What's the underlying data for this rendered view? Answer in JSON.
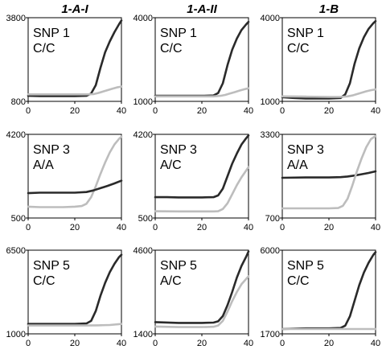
{
  "column_titles": [
    "1-A-I",
    "1-A-II",
    "1-B"
  ],
  "colors": {
    "dark_series": "#2a2a2a",
    "light_series": "#bdbdbd",
    "frame": "#000000"
  },
  "chart_data": [
    {
      "type": "line",
      "label_top": "SNP 1",
      "label_bottom": "C/C",
      "xlim": [
        0,
        40
      ],
      "ylim": [
        800,
        3800
      ],
      "xticks": [
        0,
        20,
        40
      ],
      "yticks": [
        800,
        3800
      ],
      "grid": false,
      "series": [
        {
          "color": "#2a2a2a",
          "x": [
            0,
            5,
            10,
            15,
            20,
            25,
            27,
            29,
            31,
            33,
            35,
            37,
            39,
            40
          ],
          "y": [
            1000,
            990,
            990,
            990,
            990,
            1000,
            1080,
            1380,
            2000,
            2560,
            2950,
            3280,
            3570,
            3700
          ]
        },
        {
          "color": "#bdbdbd",
          "x": [
            0,
            10,
            20,
            25,
            28,
            30,
            32,
            34,
            36,
            38,
            40
          ],
          "y": [
            1050,
            1050,
            1050,
            1050,
            1060,
            1100,
            1150,
            1200,
            1250,
            1300,
            1330
          ]
        }
      ]
    },
    {
      "type": "line",
      "label_top": "SNP 1",
      "label_bottom": "C/C",
      "xlim": [
        0,
        40
      ],
      "ylim": [
        1000,
        4000
      ],
      "xticks": [
        0,
        20,
        40
      ],
      "yticks": [
        1000,
        4000
      ],
      "grid": false,
      "series": [
        {
          "color": "#2a2a2a",
          "x": [
            0,
            5,
            10,
            15,
            20,
            25,
            27,
            29,
            31,
            33,
            35,
            37,
            39,
            40
          ],
          "y": [
            1200,
            1200,
            1200,
            1200,
            1200,
            1210,
            1300,
            1650,
            2300,
            2850,
            3250,
            3560,
            3760,
            3850
          ]
        },
        {
          "color": "#bdbdbd",
          "x": [
            0,
            10,
            20,
            25,
            28,
            30,
            32,
            34,
            36,
            38,
            40
          ],
          "y": [
            1180,
            1180,
            1180,
            1180,
            1200,
            1230,
            1280,
            1330,
            1380,
            1430,
            1470
          ]
        }
      ]
    },
    {
      "type": "line",
      "label_top": "SNP 1",
      "label_bottom": "C/C",
      "xlim": [
        0,
        40
      ],
      "ylim": [
        1000,
        4000
      ],
      "xticks": [
        0,
        20,
        40
      ],
      "yticks": [
        1000,
        4000
      ],
      "grid": false,
      "series": [
        {
          "color": "#2a2a2a",
          "x": [
            0,
            5,
            10,
            15,
            20,
            25,
            27,
            29,
            31,
            33,
            35,
            37,
            39,
            40
          ],
          "y": [
            1150,
            1120,
            1100,
            1100,
            1100,
            1120,
            1250,
            1650,
            2350,
            2900,
            3300,
            3600,
            3800,
            3880
          ]
        },
        {
          "color": "#bdbdbd",
          "x": [
            0,
            10,
            20,
            25,
            28,
            30,
            32,
            34,
            36,
            38,
            40
          ],
          "y": [
            1180,
            1170,
            1160,
            1160,
            1180,
            1210,
            1260,
            1310,
            1360,
            1400,
            1430
          ]
        }
      ]
    },
    {
      "type": "line",
      "label_top": "SNP 3",
      "label_bottom": "A/A",
      "xlim": [
        0,
        40
      ],
      "ylim": [
        500,
        4200
      ],
      "xticks": [
        0,
        20,
        40
      ],
      "yticks": [
        500,
        4200
      ],
      "grid": false,
      "series": [
        {
          "color": "#bdbdbd",
          "x": [
            0,
            5,
            10,
            15,
            20,
            23,
            25,
            27,
            29,
            31,
            33,
            35,
            37,
            39,
            40
          ],
          "y": [
            1000,
            980,
            980,
            980,
            1000,
            1030,
            1130,
            1420,
            1900,
            2450,
            2950,
            3400,
            3750,
            4000,
            4100
          ]
        },
        {
          "color": "#2a2a2a",
          "x": [
            0,
            5,
            10,
            15,
            20,
            25,
            28,
            31,
            34,
            37,
            40
          ],
          "y": [
            1600,
            1620,
            1620,
            1620,
            1620,
            1650,
            1720,
            1820,
            1920,
            2030,
            2150
          ]
        }
      ]
    },
    {
      "type": "line",
      "label_top": "SNP 3",
      "label_bottom": "A/C",
      "xlim": [
        0,
        40
      ],
      "ylim": [
        500,
        4200
      ],
      "xticks": [
        0,
        20,
        40
      ],
      "yticks": [
        500,
        4200
      ],
      "grid": false,
      "series": [
        {
          "color": "#2a2a2a",
          "x": [
            0,
            5,
            10,
            15,
            20,
            25,
            27,
            29,
            31,
            33,
            35,
            37,
            39,
            40
          ],
          "y": [
            1420,
            1420,
            1410,
            1410,
            1410,
            1420,
            1500,
            1800,
            2350,
            2900,
            3350,
            3750,
            4030,
            4150
          ]
        },
        {
          "color": "#bdbdbd",
          "x": [
            0,
            10,
            20,
            25,
            27,
            29,
            31,
            33,
            35,
            37,
            39,
            40
          ],
          "y": [
            800,
            790,
            790,
            790,
            800,
            900,
            1150,
            1550,
            1950,
            2300,
            2600,
            2750
          ]
        }
      ]
    },
    {
      "type": "line",
      "label_top": "SNP 3",
      "label_bottom": "A/A",
      "xlim": [
        0,
        40
      ],
      "ylim": [
        700,
        3300
      ],
      "xticks": [
        0,
        20,
        40
      ],
      "yticks": [
        700,
        3300
      ],
      "grid": false,
      "series": [
        {
          "color": "#2a2a2a",
          "x": [
            0,
            10,
            20,
            25,
            28,
            31,
            34,
            37,
            40
          ],
          "y": [
            1950,
            1960,
            1960,
            1970,
            1990,
            2020,
            2060,
            2100,
            2150
          ]
        },
        {
          "color": "#bdbdbd",
          "x": [
            0,
            10,
            20,
            24,
            26,
            28,
            30,
            32,
            34,
            36,
            38,
            40
          ],
          "y": [
            1000,
            1000,
            1000,
            1010,
            1080,
            1300,
            1700,
            2150,
            2550,
            2900,
            3150,
            3250
          ]
        }
      ]
    },
    {
      "type": "line",
      "label_top": "SNP 5",
      "label_bottom": "C/C",
      "xlim": [
        0,
        40
      ],
      "ylim": [
        1000,
        6500
      ],
      "xticks": [
        0,
        20,
        40
      ],
      "yticks": [
        1000,
        6500
      ],
      "grid": false,
      "series": [
        {
          "color": "#2a2a2a",
          "x": [
            0,
            10,
            20,
            25,
            27,
            29,
            31,
            33,
            35,
            37,
            39,
            40
          ],
          "y": [
            1650,
            1650,
            1650,
            1680,
            1850,
            2500,
            3500,
            4350,
            5050,
            5600,
            6050,
            6200
          ]
        },
        {
          "color": "#bdbdbd",
          "x": [
            0,
            10,
            20,
            25,
            30,
            35,
            40
          ],
          "y": [
            1550,
            1550,
            1550,
            1550,
            1560,
            1580,
            1650
          ]
        }
      ]
    },
    {
      "type": "line",
      "label_top": "SNP 5",
      "label_bottom": "A/C",
      "xlim": [
        0,
        40
      ],
      "ylim": [
        1400,
        4600
      ],
      "xticks": [
        0,
        20,
        40
      ],
      "yticks": [
        1400,
        4600
      ],
      "grid": false,
      "series": [
        {
          "color": "#2a2a2a",
          "x": [
            0,
            10,
            20,
            25,
            27,
            29,
            31,
            33,
            35,
            37,
            39,
            40
          ],
          "y": [
            1850,
            1820,
            1820,
            1830,
            1880,
            2080,
            2500,
            3000,
            3550,
            4000,
            4350,
            4550
          ]
        },
        {
          "color": "#bdbdbd",
          "x": [
            0,
            10,
            20,
            25,
            27,
            29,
            31,
            33,
            35,
            37,
            39,
            40
          ],
          "y": [
            1680,
            1660,
            1660,
            1670,
            1720,
            1900,
            2250,
            2650,
            3000,
            3300,
            3500,
            3600
          ]
        }
      ]
    },
    {
      "type": "line",
      "label_top": "SNP 5",
      "label_bottom": "C/C",
      "xlim": [
        0,
        40
      ],
      "ylim": [
        1700,
        6000
      ],
      "xticks": [
        0,
        20,
        40
      ],
      "yticks": [
        1700,
        6000
      ],
      "grid": false,
      "series": [
        {
          "color": "#2a2a2a",
          "x": [
            0,
            10,
            20,
            25,
            27,
            29,
            31,
            33,
            35,
            37,
            39,
            40
          ],
          "y": [
            1950,
            1980,
            1980,
            2000,
            2120,
            2600,
            3400,
            4200,
            4850,
            5350,
            5750,
            5900
          ]
        },
        {
          "color": "#bdbdbd",
          "x": [
            0,
            10,
            20,
            30,
            40
          ],
          "y": [
            1950,
            1950,
            1950,
            1950,
            1950
          ]
        }
      ]
    }
  ]
}
